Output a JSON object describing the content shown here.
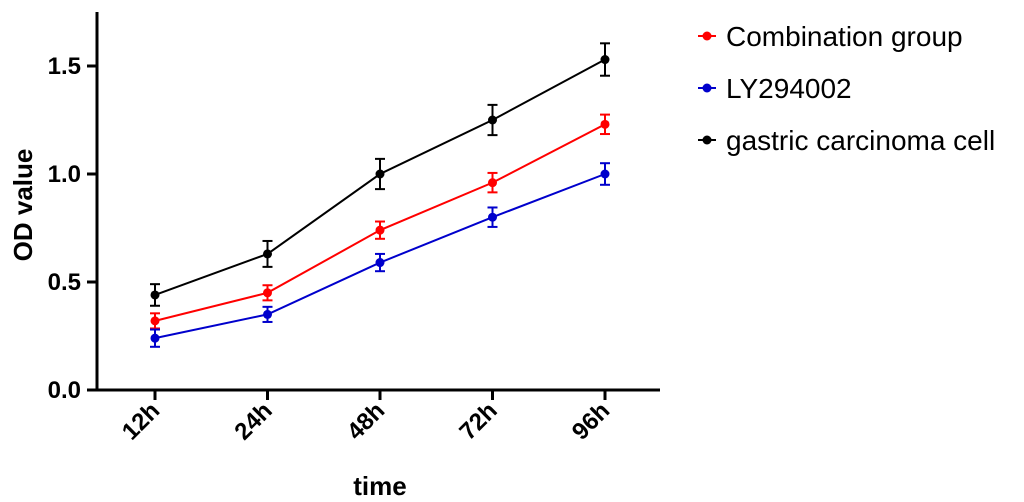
{
  "chart_data": {
    "type": "line",
    "title": "",
    "xlabel": "time",
    "ylabel": "OD value",
    "categories": [
      "12h",
      "24h",
      "48h",
      "72h",
      "96h"
    ],
    "ylim": [
      0,
      1.75
    ],
    "yticks": [
      "0.0",
      "0.5",
      "1.0",
      "1.5"
    ],
    "ytick_values": [
      0,
      0.5,
      1.0,
      1.5
    ],
    "grid": false,
    "legend_position": "top-right",
    "series": [
      {
        "name": "Combination group",
        "color": "#ff0000",
        "values": [
          0.32,
          0.45,
          0.74,
          0.96,
          1.23
        ],
        "errors": [
          0.035,
          0.035,
          0.04,
          0.045,
          0.045
        ]
      },
      {
        "name": "LY294002",
        "color": "#0000cc",
        "values": [
          0.24,
          0.35,
          0.59,
          0.8,
          1.0
        ],
        "errors": [
          0.04,
          0.035,
          0.04,
          0.045,
          0.05
        ]
      },
      {
        "name": "gastric carcinoma cell",
        "color": "#000000",
        "values": [
          0.44,
          0.63,
          1.0,
          1.25,
          1.53
        ],
        "errors": [
          0.05,
          0.06,
          0.07,
          0.07,
          0.075
        ]
      }
    ]
  }
}
